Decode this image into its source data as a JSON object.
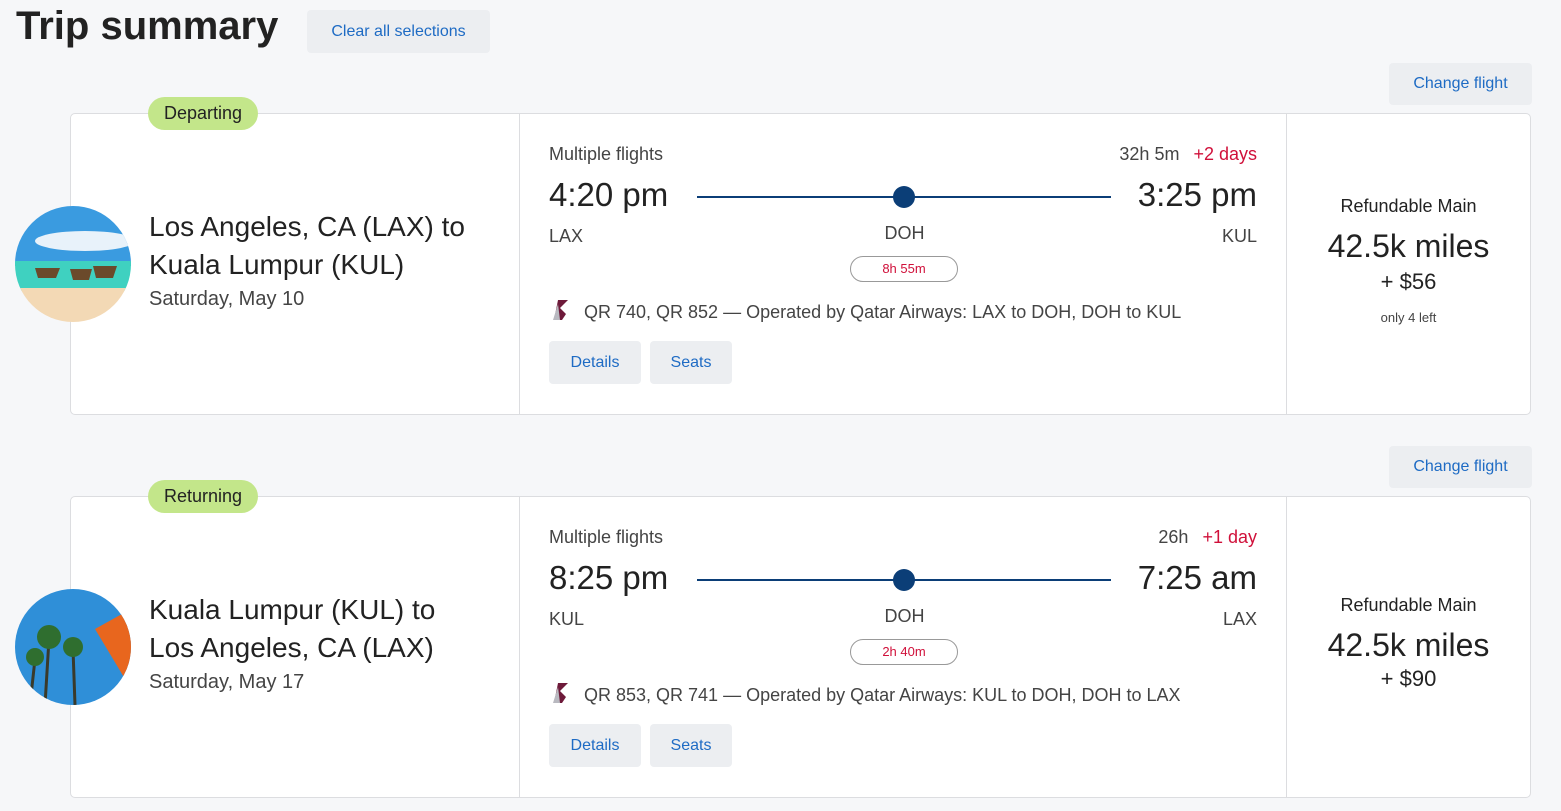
{
  "page": {
    "title": "Trip summary",
    "clear_label": "Clear all selections"
  },
  "trips": [
    {
      "badge": "Departing",
      "change_label": "Change flight",
      "route_line1": "Los Angeles, CA (LAX) to",
      "route_line2": "Kuala Lumpur (KUL)",
      "date": "Saturday, May 10",
      "multiple": "Multiple flights",
      "duration": "32h 5m",
      "plus_days": "+2 days",
      "dep_time": "4:20 pm",
      "arr_time": "3:25 pm",
      "dep_code": "LAX",
      "stop_code": "DOH",
      "arr_code": "KUL",
      "layover": "8h 55m",
      "operated": "QR 740, QR 852 — Operated by Qatar Airways: LAX to DOH, DOH to KUL",
      "details_label": "Details",
      "seats_label": "Seats",
      "fare": "Refundable Main",
      "miles": "42.5k miles",
      "fee": "+ $56",
      "avail": "only 4 left",
      "photo": "beach-longtail-boats"
    },
    {
      "badge": "Returning",
      "change_label": "Change flight",
      "route_line1": "Kuala Lumpur (KUL) to",
      "route_line2": "Los Angeles, CA (LAX)",
      "date": "Saturday, May 17",
      "multiple": "Multiple flights",
      "duration": "26h",
      "plus_days": "+1 day",
      "dep_time": "8:25 pm",
      "arr_time": "7:25 am",
      "dep_code": "KUL",
      "stop_code": "DOH",
      "arr_code": "LAX",
      "layover": "2h 40m",
      "operated": "QR 853, QR 741 — Operated by Qatar Airways: KUL to DOH, DOH to LAX",
      "details_label": "Details",
      "seats_label": "Seats",
      "fare": "Refundable Main",
      "miles": "42.5k miles",
      "fee": "+ $90",
      "avail": null,
      "photo": "palm-trees-umbrella"
    }
  ],
  "colors": {
    "accent": "#1e6bc4",
    "badge": "#c3e68a",
    "alert": "#d0103a",
    "route": "#0b3e77"
  }
}
